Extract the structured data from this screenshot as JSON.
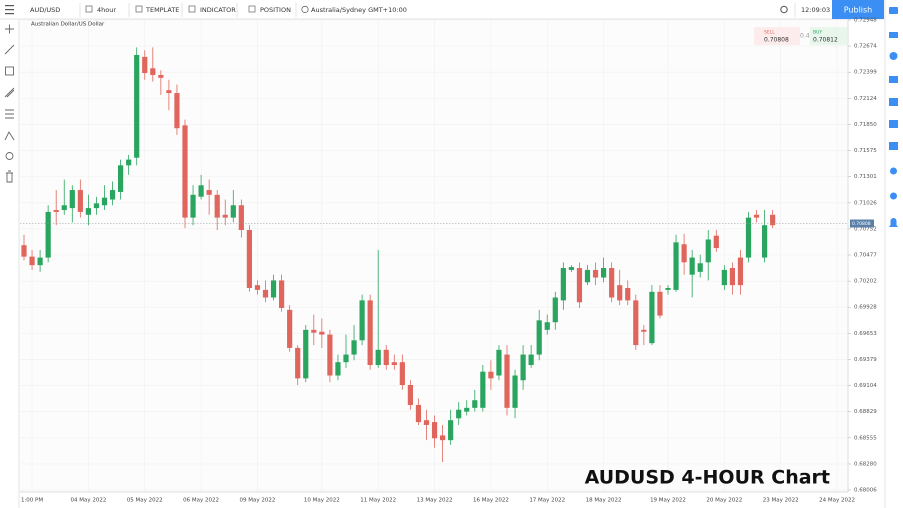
{
  "ui": {
    "symbol": "AUD/USD",
    "interval": "4hour",
    "template": "TEMPLATE",
    "indicator": "INDICATOR",
    "position": "POSITION",
    "timezone": "Australia/Sydney GMT+10:00",
    "clock": "12:09:03",
    "publish": "Publish",
    "chart_subtitle": "Australian Dollar/US Dollar",
    "sell_label": "SELL",
    "sell_price": "0.70808",
    "spread": "0.4",
    "buy_label": "BUY",
    "buy_price": "0.70812",
    "overlay_title": "AUDUSD 4-HOUR Chart"
  },
  "chart_data": {
    "type": "candlestick",
    "categories": [
      null,
      "1:00 PM",
      null,
      null,
      null,
      null,
      null,
      null,
      "04 May 2022",
      null,
      null,
      null,
      null,
      null,
      null,
      "05 May 2022",
      null,
      null,
      null,
      null,
      null,
      null,
      "06 May 2022",
      null,
      null,
      null,
      null,
      null,
      null,
      "09 May 2022",
      null,
      null,
      null,
      null,
      null,
      null,
      null,
      "10 May 2022",
      null,
      null,
      null,
      null,
      null,
      null,
      "11 May 2022",
      null,
      null,
      null,
      null,
      null,
      null,
      "13 May 2022",
      null,
      null,
      null,
      null,
      null,
      null,
      "16 May 2022",
      null,
      null,
      null,
      null,
      null,
      null,
      "17 May 2022",
      null,
      null,
      null,
      null,
      null,
      null,
      "18 May 2022",
      null,
      null,
      null,
      null,
      null,
      null,
      null,
      "19 May 2022",
      null,
      null,
      null,
      null,
      null,
      null,
      "20 May 2022",
      null,
      null,
      null,
      null,
      null,
      null,
      "23 May 2022",
      null,
      null,
      null,
      null,
      null,
      null,
      "24 May 2022"
    ],
    "open": [
      0.7058,
      0.7046,
      0.7037,
      0.7045,
      0.7095,
      0.7095,
      0.7097,
      0.7116,
      0.709,
      0.7097,
      0.71,
      0.7106,
      0.7114,
      0.7142,
      0.715,
      0.7256,
      0.7244,
      0.7237,
      0.7221,
      0.7218,
      0.7184,
      0.7087,
      0.7109,
      0.7116,
      0.7111,
      0.709,
      0.7087,
      0.71,
      0.7074,
      0.7016,
      0.7011,
      0.7003,
      0.7021,
      0.699,
      0.695,
      0.6918,
      0.6969,
      0.6967,
      0.6964,
      0.6921,
      0.6935,
      0.6943,
      0.6958,
      0.7,
      0.6932,
      0.6948,
      0.6935,
      0.6935,
      0.6911,
      0.689,
      0.6874,
      0.6872,
      0.6858,
      0.6853,
      0.6876,
      0.6883,
      0.6887,
      0.6887,
      0.6925,
      0.6921,
      0.6943,
      0.6887,
      0.6916,
      0.6932,
      0.6943,
      0.6969,
      0.6977,
      0.7,
      0.7032,
      0.7034,
      0.7019,
      0.7032,
      0.7024,
      0.7034,
      0.7016,
      0.7013,
      0.7,
      0.6969,
      0.6955,
      0.7009,
      0.7011,
      0.7011,
      0.7059,
      0.7027,
      0.703,
      0.704,
      0.7068,
      0.7016,
      0.7034,
      0.7045,
      0.7045,
      0.709,
      0.7045,
      0.709,
      null,
      null,
      null,
      null,
      null,
      null,
      null,
      null
    ],
    "high": [
      0.7069,
      0.7053,
      0.7053,
      0.71,
      0.7116,
      0.7127,
      0.7121,
      0.7127,
      0.7111,
      0.7109,
      0.7121,
      0.7125,
      0.7148,
      0.7153,
      0.7266,
      0.7263,
      0.7266,
      0.7242,
      0.7232,
      0.7227,
      0.719,
      0.7121,
      0.7132,
      0.7127,
      0.7116,
      0.7106,
      0.7116,
      0.7106,
      0.7079,
      0.7021,
      0.7021,
      0.7027,
      0.7027,
      0.6995,
      0.6953,
      0.6974,
      0.6985,
      0.6981,
      0.6969,
      0.6943,
      0.6964,
      0.6974,
      0.7006,
      0.7006,
      0.7053,
      0.6953,
      0.6943,
      0.6943,
      0.6916,
      0.6897,
      0.6885,
      0.6879,
      0.6869,
      0.6885,
      0.6893,
      0.6895,
      0.6906,
      0.6932,
      0.6937,
      0.6953,
      0.6953,
      0.6927,
      0.6953,
      0.6953,
      0.699,
      0.6985,
      0.7009,
      0.704,
      0.7037,
      0.704,
      0.7037,
      0.704,
      0.7045,
      0.704,
      0.7032,
      0.7021,
      0.7006,
      0.6974,
      0.7016,
      0.7016,
      0.7016,
      0.7069,
      0.707,
      0.7053,
      0.7048,
      0.7074,
      0.7074,
      0.7037,
      0.704,
      0.7053,
      0.7093,
      0.7095,
      0.7095,
      0.7095,
      null,
      null,
      null,
      null,
      null,
      null,
      null,
      null
    ],
    "low": [
      0.7042,
      0.7032,
      0.703,
      0.704,
      0.7079,
      0.709,
      0.7082,
      0.7087,
      0.7079,
      0.709,
      0.7095,
      0.71,
      0.7106,
      0.7132,
      0.7142,
      0.7232,
      0.723,
      0.7216,
      0.72,
      0.7174,
      0.7076,
      0.7079,
      0.7106,
      0.709,
      0.7074,
      0.7079,
      0.7082,
      0.7066,
      0.7009,
      0.7006,
      0.6998,
      0.7,
      0.6988,
      0.6946,
      0.6911,
      0.6914,
      0.6953,
      0.695,
      0.6914,
      0.6916,
      0.6929,
      0.6937,
      0.6953,
      0.6927,
      0.6929,
      0.6927,
      0.6927,
      0.6906,
      0.6885,
      0.6869,
      0.6853,
      0.6845,
      0.683,
      0.6848,
      0.6869,
      0.6879,
      0.6883,
      0.6883,
      0.6906,
      0.6916,
      0.6879,
      0.6876,
      0.6906,
      0.6929,
      0.6937,
      0.6964,
      0.6969,
      0.699,
      0.703,
      0.6992,
      0.7016,
      0.7016,
      0.7019,
      0.6998,
      0.6995,
      0.6995,
      0.6948,
      0.6953,
      0.6953,
      0.6981,
      0.7006,
      0.7009,
      0.7027,
      0.7003,
      0.7024,
      0.7021,
      0.7051,
      0.7011,
      0.7006,
      0.7006,
      0.704,
      0.7082,
      0.704,
      0.7076,
      null,
      null,
      null,
      null,
      null,
      null,
      null,
      null
    ],
    "close": [
      0.7046,
      0.7037,
      0.7045,
      0.7093,
      0.7093,
      0.71,
      0.7116,
      0.7093,
      0.7097,
      0.7102,
      0.7108,
      0.7116,
      0.7142,
      0.7148,
      0.7258,
      0.7239,
      0.7237,
      0.7234,
      0.7218,
      0.7181,
      0.7087,
      0.7111,
      0.7121,
      0.7111,
      0.7087,
      0.7087,
      0.71,
      0.7074,
      0.7013,
      0.7011,
      0.7003,
      0.7021,
      0.6992,
      0.695,
      0.6918,
      0.6969,
      0.6966,
      0.6964,
      0.6921,
      0.6935,
      0.6943,
      0.6958,
      0.7,
      0.6932,
      0.6948,
      0.6932,
      0.6932,
      0.6911,
      0.689,
      0.6872,
      0.6869,
      0.6855,
      0.6853,
      0.6874,
      0.6885,
      0.6887,
      0.6895,
      0.6925,
      0.6918,
      0.6948,
      0.6887,
      0.6921,
      0.6943,
      0.6943,
      0.6979,
      0.6977,
      0.7003,
      0.7034,
      0.7035,
      0.6998,
      0.7032,
      0.7024,
      0.7034,
      0.7003,
      0.7,
      0.7,
      0.6953,
      0.6967,
      0.7009,
      0.6984,
      0.7013,
      0.7061,
      0.704,
      0.7045,
      0.7039,
      0.7064,
      0.7055,
      0.7032,
      0.7016,
      0.7016,
      0.7087,
      0.7087,
      0.7079,
      0.7079,
      null,
      null,
      null,
      null,
      null,
      null,
      null,
      null
    ],
    "up_color": "#2aa55f",
    "down_color": "#e0665d",
    "current_price": 0.70808,
    "ylim": [
      0.68006,
      0.72948
    ],
    "yticks": [
      0.72948,
      0.72674,
      0.72399,
      0.72124,
      {
        "value": 0.7185,
        "label": "0.71850"
      },
      0.71575,
      0.71301,
      0.71026,
      0.70752,
      0.70477,
      0.70202,
      0.69928,
      0.69653,
      0.69379,
      0.69104,
      0.68829,
      0.68555,
      {
        "value": 0.6828,
        "label": "0.68280"
      },
      0.68006
    ],
    "grid": true
  }
}
